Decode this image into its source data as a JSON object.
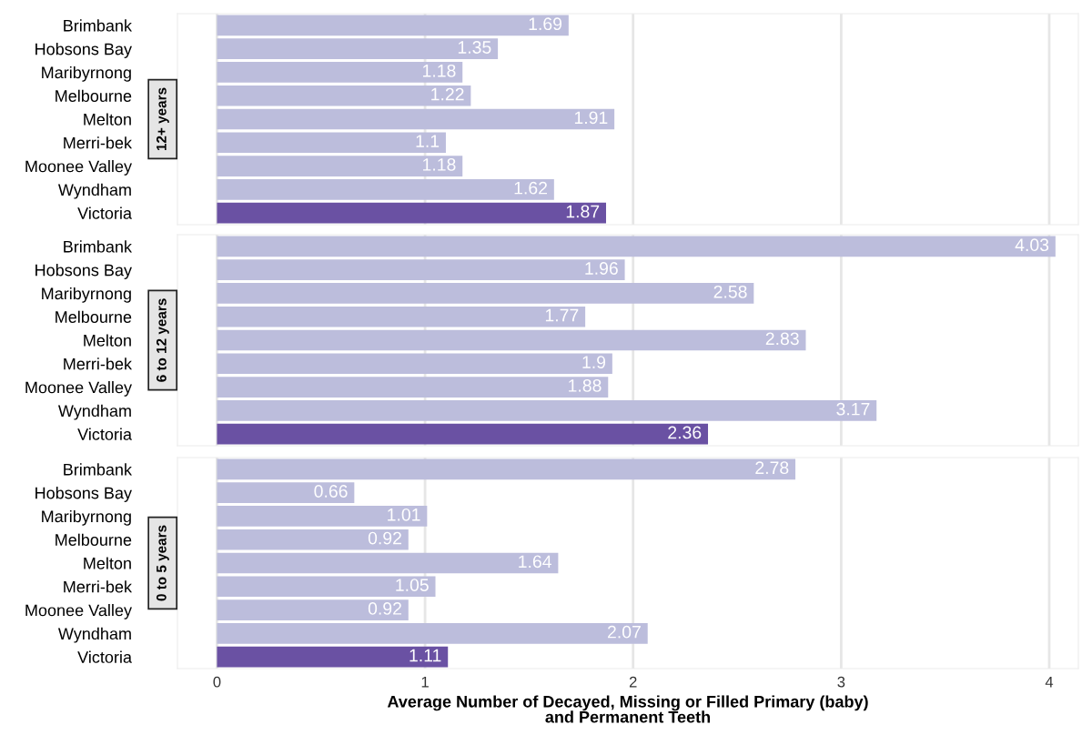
{
  "chart_data": [
    {
      "type": "bar",
      "orientation": "horizontal",
      "title": "12+ years",
      "categories": [
        "Brimbank",
        "Hobsons Bay",
        "Maribyrnong",
        "Melbourne",
        "Melton",
        "Merri-bek",
        "Moonee Valley",
        "Wyndham",
        "Victoria"
      ],
      "values": [
        1.69,
        1.35,
        1.18,
        1.22,
        1.91,
        1.1,
        1.18,
        1.62,
        1.87
      ],
      "colors": [
        "#bcbddc",
        "#bcbddc",
        "#bcbddc",
        "#bcbddc",
        "#bcbddc",
        "#bcbddc",
        "#bcbddc",
        "#bcbddc",
        "#6a51a3"
      ],
      "xlim": [
        -0.19,
        4.14
      ],
      "xticks": [
        0,
        1,
        2,
        3,
        4
      ],
      "tick_labels": "y",
      "grid": "x",
      "data_labels": true
    },
    {
      "type": "bar",
      "orientation": "horizontal",
      "title": "6 to 12 years",
      "categories": [
        "Brimbank",
        "Hobsons Bay",
        "Maribyrnong",
        "Melbourne",
        "Melton",
        "Merri-bek",
        "Moonee Valley",
        "Wyndham",
        "Victoria"
      ],
      "values": [
        4.03,
        1.96,
        2.58,
        1.77,
        2.83,
        1.9,
        1.88,
        3.17,
        2.36
      ],
      "colors": [
        "#bcbddc",
        "#bcbddc",
        "#bcbddc",
        "#bcbddc",
        "#bcbddc",
        "#bcbddc",
        "#bcbddc",
        "#bcbddc",
        "#6a51a3"
      ],
      "xlim": [
        -0.19,
        4.14
      ],
      "xticks": [
        0,
        1,
        2,
        3,
        4
      ],
      "tick_labels": "y",
      "grid": "x",
      "data_labels": true
    },
    {
      "type": "bar",
      "orientation": "horizontal",
      "title": "0 to 5 years",
      "xlabel": "Average Number of Decayed, Missing or Filled Primary (baby)\nand Permanent Teeth",
      "categories": [
        "Brimbank",
        "Hobsons Bay",
        "Maribyrnong",
        "Melbourne",
        "Melton",
        "Merri-bek",
        "Moonee Valley",
        "Wyndham",
        "Victoria"
      ],
      "values": [
        2.78,
        0.66,
        1.01,
        0.92,
        1.64,
        1.05,
        0.92,
        2.07,
        1.11
      ],
      "colors": [
        "#bcbddc",
        "#bcbddc",
        "#bcbddc",
        "#bcbddc",
        "#bcbddc",
        "#bcbddc",
        "#bcbddc",
        "#bcbddc",
        "#6a51a3"
      ],
      "xlim": [
        -0.19,
        4.14
      ],
      "xticks": [
        0,
        1,
        2,
        3,
        4
      ],
      "grid": "x",
      "data_labels": true
    }
  ]
}
